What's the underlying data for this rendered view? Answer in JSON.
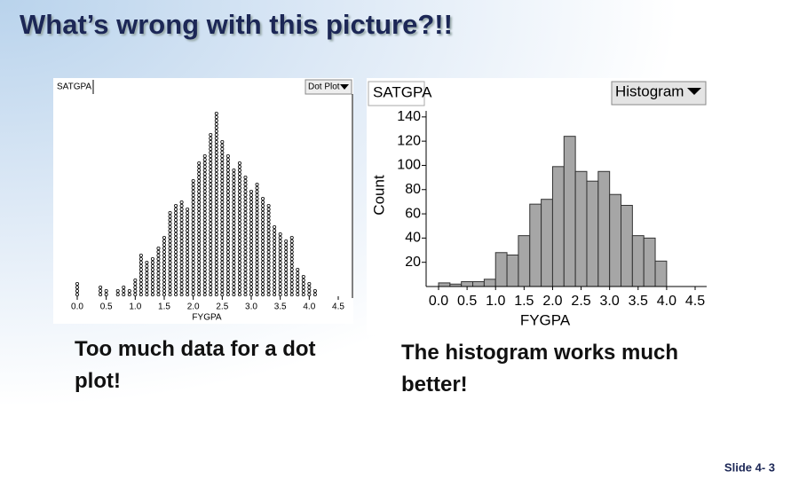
{
  "title": "What’s wrong with this picture?!!",
  "chart_data": [
    {
      "type": "dot",
      "y_label": "SATGPA",
      "menu": "Dot Plot",
      "x_label": "FYGPA",
      "x": [
        0.0,
        0.1,
        0.2,
        0.3,
        0.4,
        0.5,
        0.6,
        0.7,
        0.8,
        0.9,
        1.0,
        1.1,
        1.2,
        1.3,
        1.4,
        1.5,
        1.6,
        1.7,
        1.8,
        1.9,
        2.0,
        2.1,
        2.2,
        2.3,
        2.4,
        2.5,
        2.6,
        2.7,
        2.8,
        2.9,
        3.0,
        3.1,
        3.2,
        3.3,
        3.4,
        3.5,
        3.6,
        3.7,
        3.8,
        3.9,
        4.0,
        4.1
      ],
      "counts": [
        4,
        0,
        0,
        0,
        3,
        2,
        0,
        2,
        3,
        2,
        5,
        12,
        10,
        11,
        14,
        17,
        24,
        26,
        27,
        25,
        33,
        38,
        40,
        46,
        52,
        44,
        40,
        36,
        38,
        34,
        30,
        32,
        28,
        26,
        20,
        18,
        16,
        17,
        8,
        6,
        4,
        2
      ],
      "xlim": [
        0,
        4.5
      ],
      "xticks": [
        {
          "value": 0,
          "label": "0.0"
        },
        {
          "value": 0.5,
          "label": "0.5"
        },
        {
          "value": 1,
          "label": "1.0"
        },
        {
          "value": 1.5,
          "label": "1.5"
        },
        {
          "value": 2,
          "label": "2.0"
        },
        {
          "value": 2.5,
          "label": "2.5"
        },
        {
          "value": 3,
          "label": "3.0"
        },
        {
          "value": 3.5,
          "label": "3.5"
        },
        {
          "value": 4,
          "label": "4.0"
        },
        {
          "value": 4.5,
          "label": "4.5"
        }
      ]
    },
    {
      "type": "histogram",
      "variable": "SATGPA",
      "menu": "Histogram",
      "y_label": "Count",
      "x_label": "FYGPA",
      "bins": [
        0.0,
        0.2,
        0.4,
        0.6,
        0.8,
        1.0,
        1.2,
        1.4,
        1.6,
        1.8,
        2.0,
        2.2,
        2.4,
        2.6,
        2.8,
        3.0,
        3.2,
        3.4,
        3.6,
        3.8,
        4.0
      ],
      "values": [
        3,
        2,
        4,
        4,
        6,
        28,
        26,
        42,
        68,
        72,
        99,
        124,
        95,
        87,
        95,
        76,
        67,
        42,
        40,
        21
      ],
      "color": "#a6a6a6",
      "ylim": [
        0,
        145
      ],
      "yticks": [
        20,
        40,
        60,
        80,
        100,
        120,
        140
      ],
      "xlim": [
        0,
        4.5
      ],
      "xticks": [
        {
          "value": 0,
          "label": "0.0"
        },
        {
          "value": 0.5,
          "label": "0.5"
        },
        {
          "value": 1,
          "label": "1.0"
        },
        {
          "value": 1.5,
          "label": "1.5"
        },
        {
          "value": 2,
          "label": "2.0"
        },
        {
          "value": 2.5,
          "label": "2.5"
        },
        {
          "value": 3,
          "label": "3.0"
        },
        {
          "value": 3.5,
          "label": "3.5"
        },
        {
          "value": 4,
          "label": "4.0"
        },
        {
          "value": 4.5,
          "label": "4.5"
        }
      ]
    }
  ],
  "captions": [
    "Too much data for a dot plot!",
    "The histogram works much better!"
  ],
  "slide_number": "Slide 4- 3"
}
